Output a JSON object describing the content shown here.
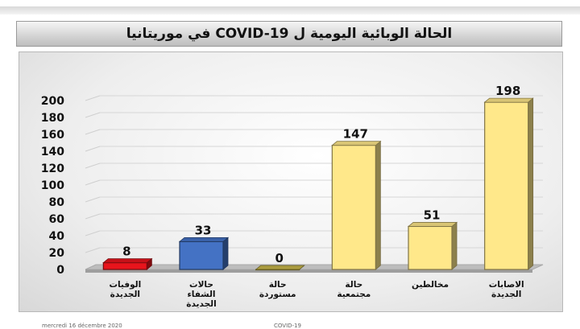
{
  "title": "الحالة الوبائية اليومية ل COVID-19 في موريتانيا",
  "footer": {
    "date": "mercredi 16 décembre 2020",
    "label": "COVID-19"
  },
  "chart_data": {
    "type": "bar",
    "title": "الحالة الوبائية اليومية ل COVID-19 في موريتانيا",
    "categories": [
      [
        "الوفيات",
        "الجديدة"
      ],
      [
        "حالات",
        "الشفاء",
        "الجديدة"
      ],
      [
        "حالة",
        "مستوردة"
      ],
      [
        "حالة",
        "مجتمعية"
      ],
      [
        "مخالطين"
      ],
      [
        "الاصابات",
        "الجديدة"
      ]
    ],
    "values": [
      8,
      33,
      0,
      147,
      51,
      198
    ],
    "colors": [
      "#e8141c",
      "#4472c4",
      "#c9b74a",
      "#ffe88a",
      "#ffe88a",
      "#ffe88a"
    ],
    "yticks": [
      0,
      20,
      40,
      60,
      80,
      100,
      120,
      140,
      160,
      180,
      200
    ],
    "ylim": [
      0,
      200
    ],
    "grid": true,
    "legend": "none"
  }
}
